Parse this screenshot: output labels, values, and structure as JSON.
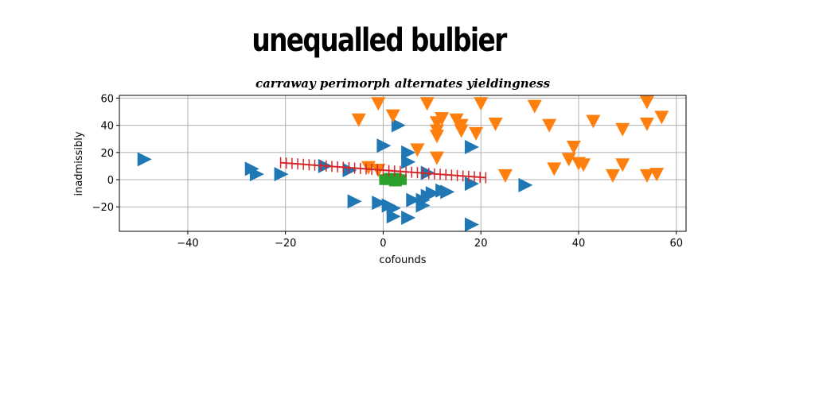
{
  "page": {
    "title": "unequalled bulbier"
  },
  "chart_data": {
    "type": "scatter",
    "title": "carraway perimorph alternates yieldingness",
    "xlabel": "cofounds",
    "ylabel": "inadmissibly",
    "xlim": [
      -54,
      62
    ],
    "ylim": [
      -38,
      62
    ],
    "xticks": [
      -40,
      -20,
      0,
      20,
      40,
      60
    ],
    "yticks": [
      -20,
      0,
      20,
      40,
      60
    ],
    "grid": true,
    "colors": {
      "blue": "#1f77b4",
      "orange": "#ff7f0e",
      "green": "#2ca02c",
      "red": "#d62728"
    },
    "series": [
      {
        "marker": "triangle-right",
        "color": "#1f77b4",
        "points": [
          [
            -49,
            15
          ],
          [
            -27,
            8
          ],
          [
            -26,
            4
          ],
          [
            -21,
            4
          ],
          [
            -12,
            10
          ],
          [
            -7,
            7
          ],
          [
            -6,
            -16
          ],
          [
            -1,
            -17
          ],
          [
            0,
            25
          ],
          [
            1,
            -19
          ],
          [
            2,
            -21
          ],
          [
            3,
            40
          ],
          [
            2,
            -27
          ],
          [
            5,
            -28
          ],
          [
            5,
            20
          ],
          [
            5,
            13
          ],
          [
            6,
            -15
          ],
          [
            8,
            -15
          ],
          [
            8,
            -19
          ],
          [
            9,
            -12
          ],
          [
            10,
            -10
          ],
          [
            12,
            -8
          ],
          [
            13,
            -9
          ],
          [
            9,
            5
          ],
          [
            18,
            24
          ],
          [
            18,
            -3
          ],
          [
            18,
            -33
          ],
          [
            29,
            -4
          ]
        ]
      },
      {
        "marker": "triangle-down",
        "color": "#ff7f0e",
        "points": [
          [
            -5,
            44
          ],
          [
            -3,
            9
          ],
          [
            -1,
            7
          ],
          [
            -1,
            56
          ],
          [
            2,
            47
          ],
          [
            7,
            22
          ],
          [
            9,
            56
          ],
          [
            11,
            42
          ],
          [
            11,
            36
          ],
          [
            11,
            32
          ],
          [
            11,
            16
          ],
          [
            12,
            45
          ],
          [
            15,
            44
          ],
          [
            16,
            40
          ],
          [
            16,
            36
          ],
          [
            19,
            34
          ],
          [
            20,
            56
          ],
          [
            23,
            41
          ],
          [
            25,
            3
          ],
          [
            31,
            54
          ],
          [
            34,
            40
          ],
          [
            35,
            8
          ],
          [
            39,
            24
          ],
          [
            38,
            15
          ],
          [
            40,
            12
          ],
          [
            41,
            11
          ],
          [
            43,
            43
          ],
          [
            47,
            3
          ],
          [
            49,
            37
          ],
          [
            49,
            11
          ],
          [
            54,
            57
          ],
          [
            54,
            41
          ],
          [
            54,
            3
          ],
          [
            56,
            4
          ],
          [
            57,
            46
          ]
        ]
      },
      {
        "marker": "square",
        "color": "#2ca02c",
        "points": [
          [
            0,
            1
          ],
          [
            1,
            1
          ],
          [
            2,
            1
          ],
          [
            3,
            1
          ],
          [
            4,
            1
          ],
          [
            0,
            -1
          ],
          [
            1,
            -1
          ],
          [
            2,
            -1
          ],
          [
            3,
            -1
          ],
          [
            4,
            -1
          ],
          [
            1,
            2
          ],
          [
            2,
            2
          ],
          [
            3,
            2
          ],
          [
            2,
            -2
          ],
          [
            3,
            -2
          ]
        ]
      },
      {
        "marker": "plus-line",
        "color": "#d62728",
        "line": [
          [
            -21,
            12.5
          ],
          [
            21,
            1.5
          ]
        ],
        "ticks": 37
      }
    ]
  }
}
